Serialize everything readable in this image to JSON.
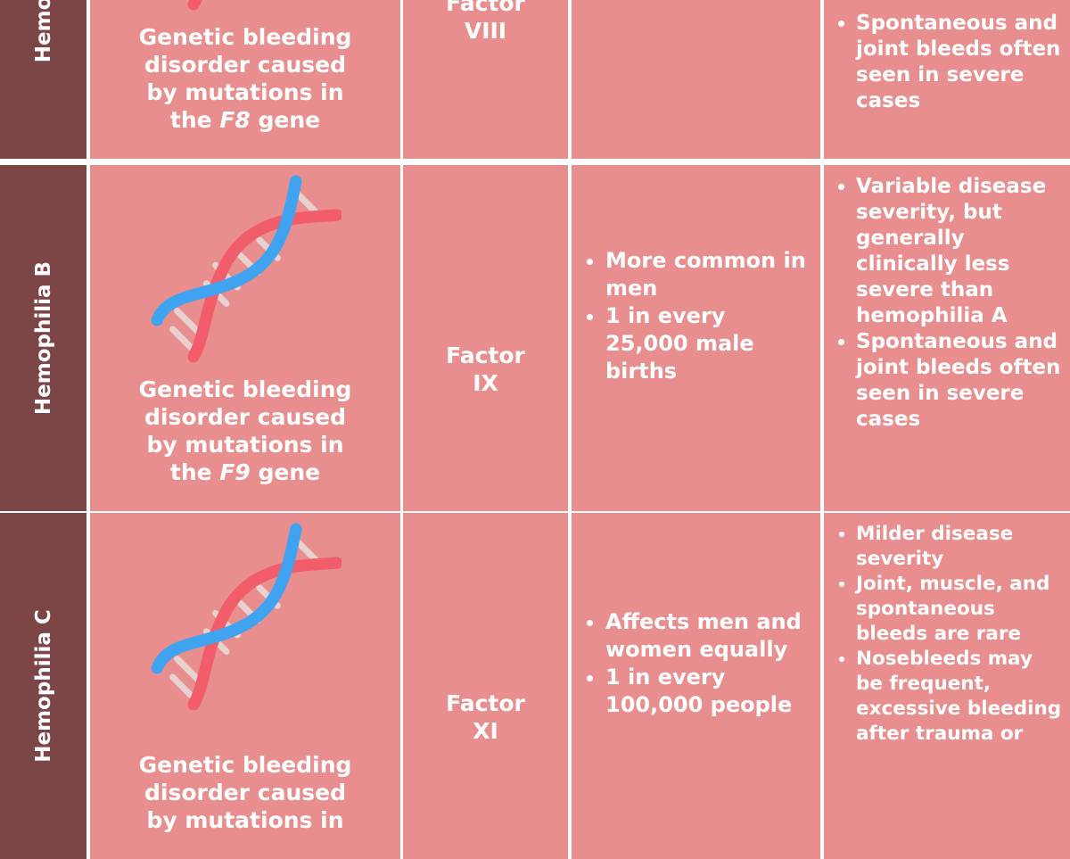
{
  "rows": [
    {
      "name": "Hemophilia A",
      "description": {
        "text": "Genetic bleeding disorder caused by mutations in the",
        "gene": "F8",
        "suffix": "gene"
      },
      "factor": "Factor VIII",
      "prevalence": [],
      "symptoms": [
        "Spontaneous and joint bleeds often seen in severe cases"
      ]
    },
    {
      "name": "Hemophilia B",
      "description": {
        "text": "Genetic bleeding disorder caused by mutations in the",
        "gene": "F9",
        "suffix": "gene"
      },
      "factor": "Factor IX",
      "prevalence": [
        "More common in men",
        "1 in every 25,000 male births"
      ],
      "symptoms": [
        "Variable disease severity, but generally clinically less severe than hemophilia A",
        "Spontaneous and joint bleeds often seen in severe cases"
      ]
    },
    {
      "name": "Hemophilia C",
      "description": {
        "text": "Genetic bleeding disorder caused by mutations in"
      },
      "factor": "Factor XI",
      "prevalence": [
        "Affects men and women equally",
        "1 in every 100,000 people"
      ],
      "symptoms": [
        "Milder disease severity",
        "Joint, muscle, and spontaneous bleeds are rare",
        "Nosebleeds may be frequent, excessive bleeding after trauma or"
      ]
    }
  ]
}
